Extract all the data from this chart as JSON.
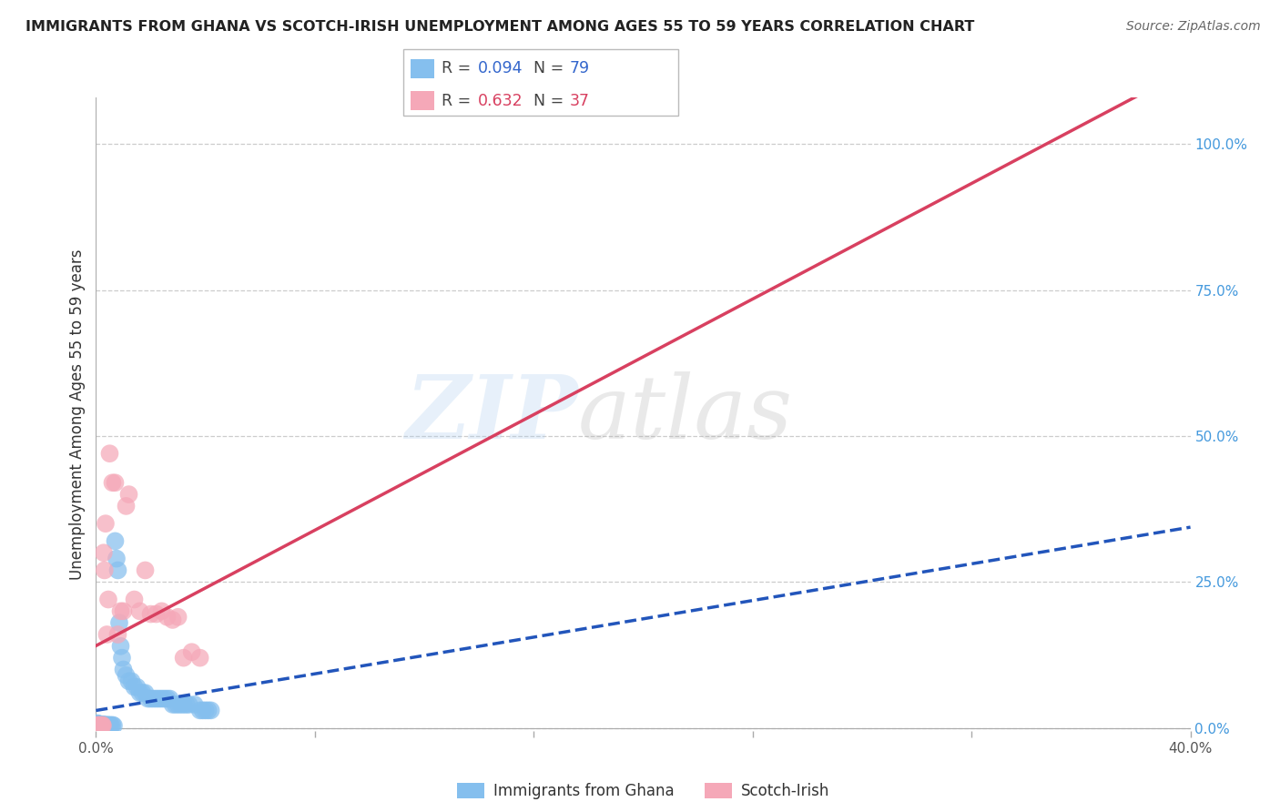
{
  "title": "IMMIGRANTS FROM GHANA VS SCOTCH-IRISH UNEMPLOYMENT AMONG AGES 55 TO 59 YEARS CORRELATION CHART",
  "source": "Source: ZipAtlas.com",
  "ylabel": "Unemployment Among Ages 55 to 59 years",
  "xlim": [
    0.0,
    0.4
  ],
  "ylim": [
    -0.005,
    1.08
  ],
  "xticks": [
    0.0,
    0.08,
    0.16,
    0.24,
    0.32,
    0.4
  ],
  "xtick_labels": [
    "0.0%",
    "",
    "",
    "",
    "",
    "40.0%"
  ],
  "yticks_right": [
    0.0,
    0.25,
    0.5,
    0.75,
    1.0
  ],
  "grid_color": "#cccccc",
  "background_color": "#ffffff",
  "ghana_color": "#85BFEE",
  "scotch_color": "#F5A8B8",
  "ghana_line_color": "#2255BB",
  "scotch_line_color": "#D84060",
  "ghana_R": 0.094,
  "ghana_N": 79,
  "scotch_R": 0.632,
  "scotch_N": 37,
  "legend_label1": "Immigrants from Ghana",
  "legend_label2": "Scotch-Irish",
  "ghana_x": [
    0.0002,
    0.0003,
    0.0004,
    0.0005,
    0.0006,
    0.0007,
    0.0008,
    0.0009,
    0.001,
    0.0011,
    0.0012,
    0.0013,
    0.0014,
    0.0015,
    0.0016,
    0.0017,
    0.0018,
    0.0019,
    0.002,
    0.0021,
    0.0022,
    0.0023,
    0.0024,
    0.0025,
    0.0026,
    0.0027,
    0.0028,
    0.0029,
    0.003,
    0.0032,
    0.0034,
    0.0036,
    0.0038,
    0.004,
    0.0042,
    0.0044,
    0.0046,
    0.0048,
    0.005,
    0.0055,
    0.006,
    0.0065,
    0.007,
    0.0075,
    0.008,
    0.0085,
    0.009,
    0.0095,
    0.01,
    0.011,
    0.012,
    0.013,
    0.014,
    0.015,
    0.016,
    0.017,
    0.018,
    0.019,
    0.02,
    0.021,
    0.022,
    0.023,
    0.024,
    0.025,
    0.026,
    0.027,
    0.028,
    0.029,
    0.03,
    0.031,
    0.032,
    0.033,
    0.034,
    0.036,
    0.038,
    0.039,
    0.04,
    0.041,
    0.042
  ],
  "ghana_y": [
    0.005,
    0.008,
    0.003,
    0.004,
    0.006,
    0.002,
    0.005,
    0.003,
    0.007,
    0.004,
    0.006,
    0.003,
    0.005,
    0.004,
    0.006,
    0.003,
    0.005,
    0.004,
    0.005,
    0.003,
    0.004,
    0.006,
    0.003,
    0.005,
    0.004,
    0.005,
    0.003,
    0.004,
    0.005,
    0.004,
    0.005,
    0.004,
    0.005,
    0.003,
    0.004,
    0.005,
    0.004,
    0.003,
    0.005,
    0.004,
    0.005,
    0.004,
    0.32,
    0.29,
    0.27,
    0.18,
    0.14,
    0.12,
    0.1,
    0.09,
    0.08,
    0.08,
    0.07,
    0.07,
    0.06,
    0.06,
    0.06,
    0.05,
    0.05,
    0.05,
    0.05,
    0.05,
    0.05,
    0.05,
    0.05,
    0.05,
    0.04,
    0.04,
    0.04,
    0.04,
    0.04,
    0.04,
    0.04,
    0.04,
    0.03,
    0.03,
    0.03,
    0.03,
    0.03
  ],
  "scotch_x": [
    0.0003,
    0.0005,
    0.0007,
    0.0009,
    0.0011,
    0.0013,
    0.0015,
    0.0017,
    0.0019,
    0.0021,
    0.0023,
    0.0025,
    0.0028,
    0.0031,
    0.0035,
    0.004,
    0.0045,
    0.005,
    0.006,
    0.007,
    0.008,
    0.009,
    0.01,
    0.011,
    0.012,
    0.014,
    0.016,
    0.018,
    0.02,
    0.022,
    0.024,
    0.026,
    0.028,
    0.03,
    0.032,
    0.035,
    0.038
  ],
  "scotch_y": [
    0.003,
    0.004,
    0.003,
    0.005,
    0.004,
    0.003,
    0.004,
    0.003,
    0.004,
    0.003,
    0.005,
    0.004,
    0.3,
    0.27,
    0.35,
    0.16,
    0.22,
    0.47,
    0.42,
    0.42,
    0.16,
    0.2,
    0.2,
    0.38,
    0.4,
    0.22,
    0.2,
    0.27,
    0.195,
    0.195,
    0.2,
    0.19,
    0.185,
    0.19,
    0.12,
    0.13,
    0.12
  ]
}
